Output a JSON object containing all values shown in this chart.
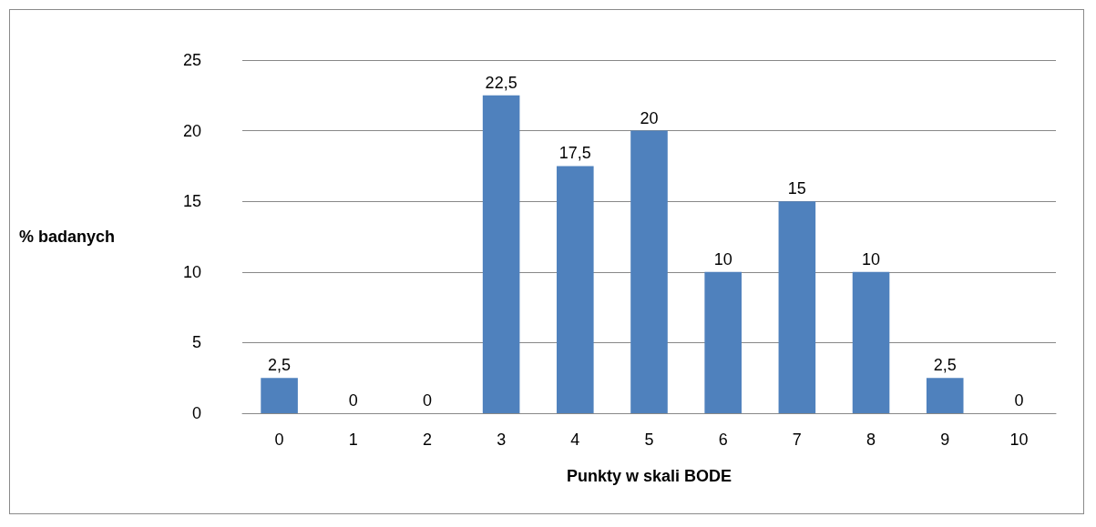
{
  "chart_data": {
    "type": "bar",
    "xlabel": "Punkty w skali BODE",
    "ylabel": "% badanych",
    "categories": [
      "0",
      "1",
      "2",
      "3",
      "4",
      "5",
      "6",
      "7",
      "8",
      "9",
      "10"
    ],
    "values": [
      2.5,
      0,
      0,
      22.5,
      17.5,
      20,
      10,
      15,
      10,
      2.5,
      0
    ],
    "value_labels": [
      "2,5",
      "0",
      "0",
      "22,5",
      "17,5",
      "20",
      "10",
      "15",
      "10",
      "2,5",
      "0"
    ],
    "color": "#4f81bd",
    "ylim": [
      0,
      25
    ],
    "yticks": [
      0,
      5,
      10,
      15,
      20,
      25
    ],
    "grid": "y"
  }
}
